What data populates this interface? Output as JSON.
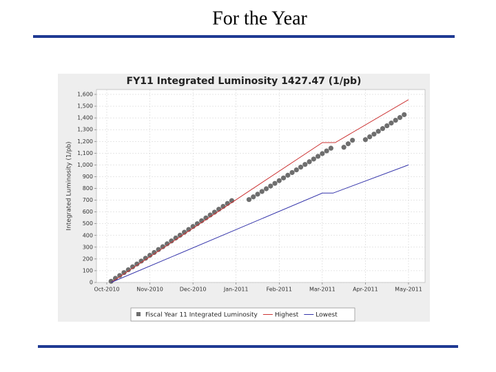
{
  "slide_title": "For the Year",
  "chart_data": {
    "type": "line",
    "title": "FY11 Integrated Luminosity 1427.47 (1/pb)",
    "ylabel": "Integrated Luminosity (1/pb)",
    "xlim": [
      0,
      7
    ],
    "xticks": [
      {
        "value": 0,
        "label": "Oct-2010"
      },
      {
        "value": 1,
        "label": "Nov-2010"
      },
      {
        "value": 2,
        "label": "Dec-2010"
      },
      {
        "value": 3,
        "label": "Jan-2011"
      },
      {
        "value": 4,
        "label": "Feb-2011"
      },
      {
        "value": 5,
        "label": "Mar-2011"
      },
      {
        "value": 6,
        "label": "Apr-2011"
      },
      {
        "value": 7,
        "label": "May-2011"
      }
    ],
    "ylim": [
      0,
      1600
    ],
    "yticks": [
      0,
      100,
      200,
      300,
      400,
      500,
      600,
      700,
      800,
      900,
      {
        "value": 1000,
        "label": "1,000"
      },
      {
        "value": 1100,
        "label": "1,100"
      },
      {
        "value": 1200,
        "label": "1,200"
      },
      {
        "value": 1300,
        "label": "1,300"
      },
      {
        "value": 1400,
        "label": "1,400"
      },
      {
        "value": 1500,
        "label": "1,500"
      },
      {
        "value": 1600,
        "label": "1,600"
      }
    ],
    "grid": true,
    "legend": "bottom",
    "series": [
      {
        "name": "Fiscal Year 11 Integrated Luminosity",
        "color": "#6e6e6e",
        "marker": true,
        "x": [
          0.1,
          0.2,
          0.3,
          0.4,
          0.5,
          0.6,
          0.7,
          0.8,
          0.9,
          1.0,
          1.1,
          1.2,
          1.3,
          1.4,
          1.5,
          1.6,
          1.7,
          1.8,
          1.9,
          2.0,
          2.1,
          2.2,
          2.3,
          2.4,
          2.5,
          2.6,
          2.7,
          2.8,
          2.9,
          3.3,
          3.4,
          3.5,
          3.6,
          3.7,
          3.8,
          3.9,
          4.0,
          4.1,
          4.2,
          4.3,
          4.4,
          4.5,
          4.6,
          4.7,
          4.8,
          4.9,
          5.0,
          5.1,
          5.2,
          5.5,
          5.6,
          5.7,
          6.0,
          6.1,
          6.2,
          6.3,
          6.4,
          6.5,
          6.6,
          6.7,
          6.8,
          6.9
        ],
        "values": [
          10,
          35,
          59,
          84,
          108,
          133,
          157,
          182,
          206,
          231,
          255,
          280,
          304,
          329,
          353,
          378,
          402,
          427,
          451,
          476,
          500,
          525,
          549,
          574,
          598,
          623,
          647,
          672,
          696,
          705,
          728,
          751,
          774,
          797,
          820,
          843,
          866,
          889,
          912,
          935,
          958,
          981,
          1004,
          1027,
          1050,
          1073,
          1096,
          1119,
          1142,
          1150,
          1180,
          1210,
          1215,
          1239,
          1262,
          1286,
          1309,
          1333,
          1356,
          1380,
          1403,
          1427.47
        ]
      },
      {
        "name": "Highest",
        "color": "#cc3333",
        "marker": false,
        "x": [
          0.1,
          5.0,
          5.3,
          7.0
        ],
        "values": [
          0,
          1190,
          1190,
          1555
        ]
      },
      {
        "name": "Lowest",
        "color": "#3333aa",
        "marker": false,
        "x": [
          0.1,
          5.0,
          5.25,
          7.0
        ],
        "values": [
          0,
          760,
          760,
          1000
        ]
      }
    ]
  }
}
